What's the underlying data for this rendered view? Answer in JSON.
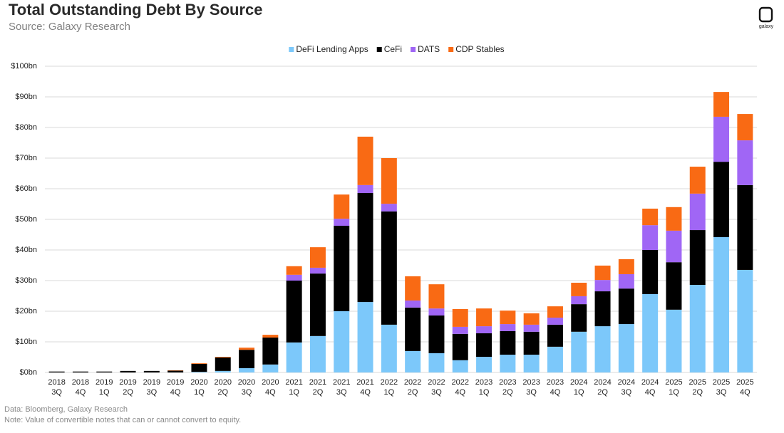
{
  "chart_data": {
    "type": "stacked-bar",
    "title": "Total Outstanding Debt By Source",
    "subtitle": "Source: Galaxy Research",
    "brand": "galaxy",
    "footnotes": [
      "Data: Bloomberg, Galaxy Research",
      "Note: Value of convertible notes  that can or cannot convert to equity."
    ],
    "categories": [
      [
        "2018",
        "3Q"
      ],
      [
        "2018",
        "4Q"
      ],
      [
        "2019",
        "1Q"
      ],
      [
        "2019",
        "2Q"
      ],
      [
        "2019",
        "3Q"
      ],
      [
        "2019",
        "4Q"
      ],
      [
        "2020",
        "1Q"
      ],
      [
        "2020",
        "2Q"
      ],
      [
        "2020",
        "3Q"
      ],
      [
        "2020",
        "4Q"
      ],
      [
        "2021",
        "1Q"
      ],
      [
        "2021",
        "2Q"
      ],
      [
        "2021",
        "3Q"
      ],
      [
        "2021",
        "4Q"
      ],
      [
        "2022",
        "1Q"
      ],
      [
        "2022",
        "2Q"
      ],
      [
        "2022",
        "3Q"
      ],
      [
        "2022",
        "4Q"
      ],
      [
        "2023",
        "1Q"
      ],
      [
        "2023",
        "2Q"
      ],
      [
        "2023",
        "3Q"
      ],
      [
        "2023",
        "4Q"
      ],
      [
        "2024",
        "1Q"
      ],
      [
        "2024",
        "2Q"
      ],
      [
        "2024",
        "3Q"
      ],
      [
        "2024",
        "4Q"
      ],
      [
        "2025",
        "1Q"
      ],
      [
        "2025",
        "2Q"
      ],
      [
        "2025",
        "3Q"
      ],
      [
        "2025",
        "4Q"
      ]
    ],
    "series": [
      {
        "name": "DeFi Lending Apps",
        "color": "#7cc8fa",
        "values": [
          0,
          0,
          0,
          0,
          0,
          0,
          0.2,
          0.5,
          1.4,
          2.6,
          9.8,
          11.9,
          20.0,
          23.0,
          15.6,
          7.0,
          6.3,
          4.0,
          5.1,
          5.8,
          5.8,
          8.4,
          13.3,
          15.1,
          15.8,
          25.6,
          20.5,
          28.6,
          44.2,
          33.5
        ]
      },
      {
        "name": "CeFi",
        "color": "#000000",
        "values": [
          0.3,
          0.3,
          0.3,
          0.5,
          0.5,
          0.6,
          2.6,
          4.4,
          6.0,
          8.8,
          20.2,
          20.4,
          27.9,
          35.6,
          37.0,
          14.2,
          12.3,
          8.6,
          7.7,
          7.7,
          7.5,
          7.2,
          9.0,
          11.4,
          11.6,
          14.4,
          15.5,
          17.9,
          24.6,
          27.7
        ]
      },
      {
        "name": "DATS",
        "color": "#a066f5",
        "values": [
          0,
          0,
          0,
          0,
          0,
          0,
          0,
          0,
          0,
          0,
          1.9,
          1.9,
          2.3,
          2.6,
          2.5,
          2.3,
          2.3,
          2.3,
          2.3,
          2.3,
          2.3,
          2.3,
          2.6,
          3.7,
          4.7,
          8.1,
          10.3,
          11.9,
          14.7,
          14.6
        ]
      },
      {
        "name": "CDP Stables",
        "color": "#f96a14",
        "values": [
          0,
          0,
          0,
          0,
          0,
          0.1,
          0.2,
          0.2,
          0.7,
          0.9,
          2.8,
          6.7,
          7.9,
          15.8,
          14.9,
          7.9,
          7.9,
          5.8,
          5.8,
          4.4,
          3.7,
          3.7,
          4.4,
          4.7,
          4.9,
          5.4,
          7.7,
          8.8,
          8.1,
          8.6
        ]
      }
    ],
    "ylim": [
      0,
      100
    ],
    "yticks": [
      {
        "value": 0,
        "label": "$0bn"
      },
      {
        "value": 10,
        "label": "$10bn"
      },
      {
        "value": 20,
        "label": "$20bn"
      },
      {
        "value": 30,
        "label": "$30bn"
      },
      {
        "value": 40,
        "label": "$40bn"
      },
      {
        "value": 50,
        "label": "$50bn"
      },
      {
        "value": 60,
        "label": "$60bn"
      },
      {
        "value": 70,
        "label": "$70bn"
      },
      {
        "value": 80,
        "label": "$80bn"
      },
      {
        "value": 90,
        "label": "$90bn"
      },
      {
        "value": 100,
        "label": "$100bn"
      }
    ],
    "grid": true,
    "legend": "top"
  }
}
